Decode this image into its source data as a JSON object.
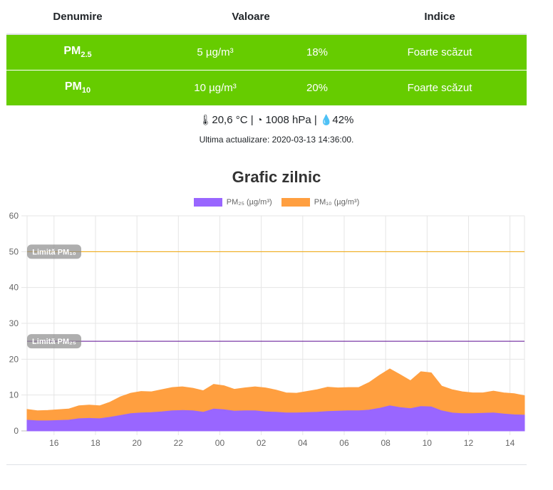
{
  "table": {
    "headers": [
      "Denumire",
      "Valoare",
      "Indice"
    ],
    "rows": [
      {
        "name": "PM",
        "sub": "2.5",
        "value": "5 µg/m³",
        "percent": "18%",
        "index": "Foarte scăzut"
      },
      {
        "name": "PM",
        "sub": "10",
        "value": "10 µg/m³",
        "percent": "20%",
        "index": "Foarte scăzut"
      }
    ],
    "row_color": "#66cc00"
  },
  "weather": {
    "temperature": "20,6 °C",
    "pressure": "1008 hPa",
    "humidity": "42%",
    "sep": "|",
    "temp_icon": "thermometer-icon",
    "pressure_icon": "gauge-icon",
    "humidity_icon": "droplet-icon"
  },
  "updated": "Ultima actualizare: 2020-03-13 14:36:00.",
  "chart_data": {
    "type": "area",
    "title": "Grafic zilnic",
    "x_ticks": [
      "16",
      "18",
      "20",
      "22",
      "00",
      "02",
      "04",
      "06",
      "08",
      "10",
      "12",
      "14"
    ],
    "ylim": [
      0,
      60
    ],
    "y_ticks": [
      0,
      10,
      20,
      30,
      40,
      50,
      60
    ],
    "grid": true,
    "legend_position": "top",
    "x_hours_from_start": [
      0,
      0.5,
      1,
      1.5,
      2,
      2.5,
      3,
      3.5,
      4,
      4.5,
      5,
      5.5,
      6,
      6.5,
      7,
      7.5,
      8,
      8.5,
      9,
      9.5,
      10,
      10.5,
      11,
      11.5,
      12,
      12.5,
      13,
      13.5,
      14,
      14.5,
      15,
      15.5,
      16,
      16.5,
      17,
      17.5,
      18,
      18.5,
      19,
      19.5,
      20,
      20.5,
      21,
      21.5,
      22,
      22.5,
      23,
      23.5,
      24
    ],
    "series": [
      {
        "name": "PM₂₅ (µg/m³)",
        "color": "#9966ff",
        "values": [
          3.0,
          2.8,
          2.8,
          2.9,
          3.0,
          3.4,
          3.5,
          3.4,
          3.8,
          4.3,
          4.8,
          5.0,
          5.1,
          5.3,
          5.6,
          5.7,
          5.6,
          5.2,
          6.1,
          5.9,
          5.5,
          5.6,
          5.6,
          5.3,
          5.2,
          5.0,
          5.0,
          5.1,
          5.2,
          5.4,
          5.5,
          5.6,
          5.6,
          5.8,
          6.3,
          7.0,
          6.5,
          6.2,
          6.8,
          6.7,
          5.6,
          5.0,
          4.8,
          4.8,
          4.9,
          5.0,
          4.7,
          4.5,
          4.4
        ]
      },
      {
        "name": "PM₁₀ (µg/m³)",
        "color": "#ff9f40",
        "values": [
          6.0,
          5.6,
          5.7,
          5.9,
          6.1,
          7.0,
          7.2,
          7.0,
          8.0,
          9.5,
          10.5,
          11.0,
          10.9,
          11.5,
          12.1,
          12.3,
          11.9,
          11.2,
          13.0,
          12.6,
          11.6,
          12.0,
          12.3,
          12.0,
          11.4,
          10.6,
          10.5,
          11.0,
          11.5,
          12.2,
          12.0,
          12.1,
          12.1,
          13.5,
          15.5,
          17.3,
          15.7,
          14.0,
          16.5,
          16.2,
          12.5,
          11.5,
          10.9,
          10.6,
          10.6,
          11.1,
          10.6,
          10.4,
          9.8
        ]
      }
    ],
    "limit_lines": [
      {
        "label": "Limită PM₁₀",
        "value": 50,
        "color": "#f0a500"
      },
      {
        "label": "Limită PM₂₅",
        "value": 25,
        "color": "#5b0a91"
      }
    ]
  }
}
